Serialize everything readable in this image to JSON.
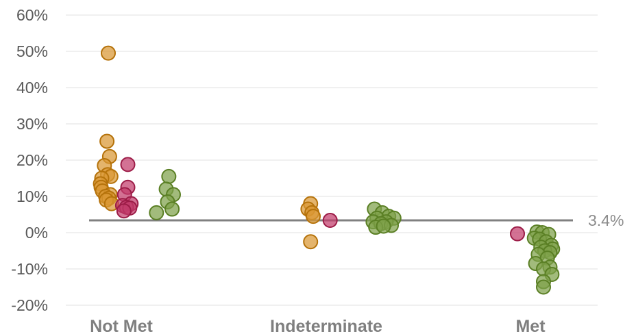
{
  "chart_data": {
    "type": "scatter",
    "title": "",
    "xlabel": "",
    "ylabel": "",
    "categories": [
      "Not Met",
      "Indeterminate",
      "Met"
    ],
    "y_ticks": [
      "60%",
      "50%",
      "40%",
      "30%",
      "20%",
      "10%",
      "0%",
      "-10%",
      "-20%"
    ],
    "ylim": [
      -20,
      60
    ],
    "grid": true,
    "reference_line": {
      "value": 3.4,
      "label": "3.4%",
      "color": "#808080"
    },
    "colors": {
      "orange": {
        "fill": "#d99733",
        "stroke": "#b5720a"
      },
      "crimson": {
        "fill": "#c23b6b",
        "stroke": "#9c1c47"
      },
      "green": {
        "fill": "#7ea14a",
        "stroke": "#5a7f24"
      }
    },
    "series": [
      {
        "color": "orange",
        "points": [
          [
            0,
            -0.2,
            49.5
          ],
          [
            0,
            -0.22,
            25.2
          ],
          [
            0,
            -0.18,
            21.0
          ],
          [
            0,
            -0.26,
            18.5
          ],
          [
            0,
            -0.21,
            16.0
          ],
          [
            0,
            -0.16,
            15.5
          ],
          [
            0,
            -0.3,
            15.0
          ],
          [
            0,
            -0.32,
            13.5
          ],
          [
            0,
            -0.31,
            12.5
          ],
          [
            0,
            -0.29,
            11.5
          ],
          [
            0,
            -0.17,
            10.5
          ],
          [
            0,
            -0.24,
            10.0
          ],
          [
            0,
            -0.19,
            9.5
          ],
          [
            0,
            -0.23,
            9.0
          ],
          [
            0,
            -0.15,
            8.0
          ],
          [
            1,
            -0.24,
            8.0
          ],
          [
            1,
            -0.28,
            6.5
          ],
          [
            1,
            -0.22,
            5.5
          ],
          [
            1,
            -0.2,
            4.5
          ],
          [
            1,
            -0.24,
            -2.5
          ]
        ]
      },
      {
        "color": "crimson",
        "points": [
          [
            0,
            0.1,
            18.8
          ],
          [
            0,
            0.1,
            12.5
          ],
          [
            0,
            0.05,
            10.5
          ],
          [
            0,
            0.15,
            8.0
          ],
          [
            0,
            0.02,
            7.5
          ],
          [
            0,
            0.08,
            7.0
          ],
          [
            0,
            0.13,
            6.8
          ],
          [
            0,
            0.04,
            6.0
          ],
          [
            1,
            0.06,
            3.4
          ],
          [
            2,
            -0.2,
            -0.3
          ]
        ]
      },
      {
        "color": "green",
        "points": [
          [
            0,
            0.73,
            15.5
          ],
          [
            0,
            0.69,
            12.0
          ],
          [
            0,
            0.8,
            10.5
          ],
          [
            0,
            0.71,
            8.5
          ],
          [
            0,
            0.54,
            5.5
          ],
          [
            0,
            0.78,
            6.5
          ],
          [
            1,
            0.74,
            6.5
          ],
          [
            1,
            0.86,
            5.5
          ],
          [
            1,
            0.96,
            4.5
          ],
          [
            1,
            0.78,
            4.0
          ],
          [
            1,
            1.04,
            4.0
          ],
          [
            1,
            0.72,
            3.0
          ],
          [
            1,
            0.92,
            3.0
          ],
          [
            1,
            0.84,
            2.5
          ],
          [
            1,
            1.0,
            2.0
          ],
          [
            1,
            0.76,
            1.5
          ],
          [
            1,
            0.88,
            1.8
          ],
          [
            2,
            0.1,
            0.2
          ],
          [
            2,
            0.18,
            0.0
          ],
          [
            2,
            0.28,
            -0.5
          ],
          [
            2,
            0.06,
            -1.5
          ],
          [
            2,
            0.14,
            -1.8
          ],
          [
            2,
            0.24,
            -2.5
          ],
          [
            2,
            0.32,
            -3.5
          ],
          [
            2,
            0.16,
            -4.0
          ],
          [
            2,
            0.34,
            -4.5
          ],
          [
            2,
            0.22,
            -5.0
          ],
          [
            2,
            0.3,
            -5.5
          ],
          [
            2,
            0.12,
            -6.0
          ],
          [
            2,
            0.26,
            -7.0
          ],
          [
            2,
            0.08,
            -8.5
          ],
          [
            2,
            0.3,
            -9.5
          ],
          [
            2,
            0.2,
            -10.0
          ],
          [
            2,
            0.33,
            -11.5
          ],
          [
            2,
            0.2,
            -13.5
          ],
          [
            2,
            0.2,
            -15.0
          ]
        ]
      }
    ]
  }
}
